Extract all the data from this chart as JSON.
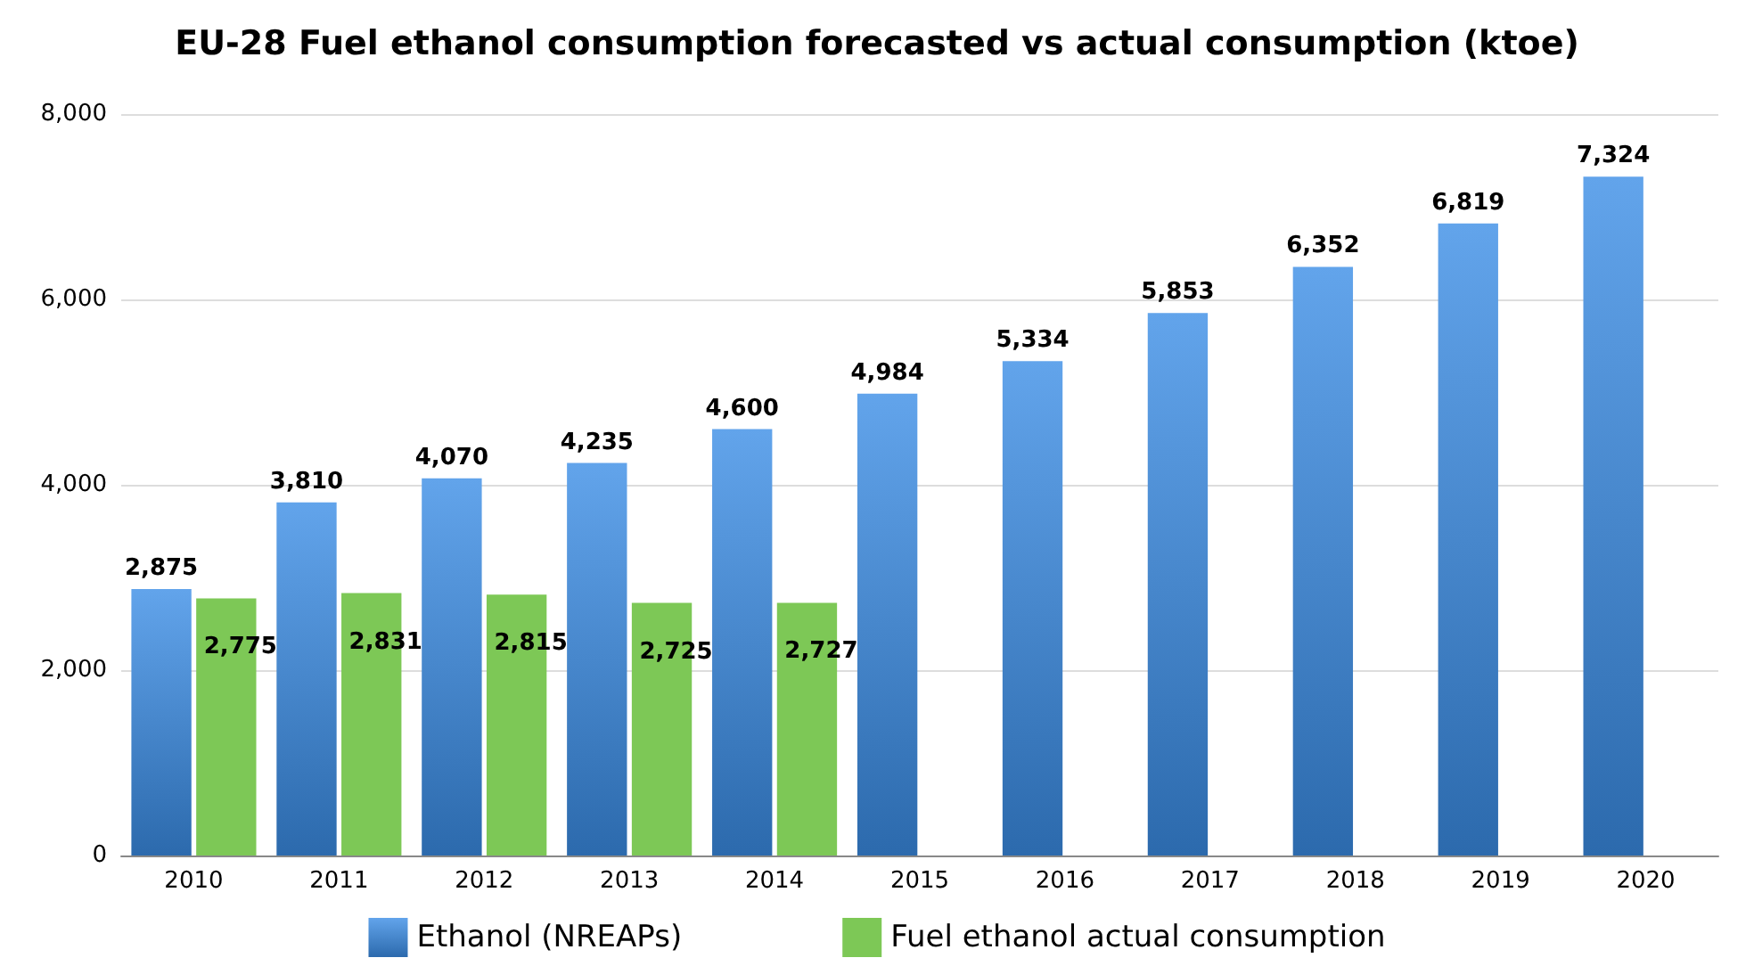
{
  "chart_data": {
    "type": "bar",
    "title": "EU-28 Fuel ethanol consumption forecasted vs actual consumption (ktoe)",
    "categories": [
      "2010",
      "2011",
      "2012",
      "2013",
      "2014",
      "2015",
      "2016",
      "2017",
      "2018",
      "2019",
      "2020"
    ],
    "series": [
      {
        "name": "Ethanol (NREAPs)",
        "color": "#3b8de6",
        "values": [
          2875,
          3810,
          4070,
          4235,
          4600,
          4984,
          5334,
          5853,
          6352,
          6819,
          7324
        ],
        "value_labels": [
          "2,875",
          "3,810",
          "4,070",
          "4,235",
          "4,600",
          "4,984",
          "5,334",
          "5,853",
          "6,352",
          "6,819",
          "7,324"
        ]
      },
      {
        "name": "Fuel ethanol actual consumption",
        "color": "#7dc856",
        "values": [
          2775,
          2831,
          2815,
          2725,
          2727,
          null,
          null,
          null,
          null,
          null,
          null
        ],
        "value_labels": [
          "2,775",
          "2,831",
          "2,815",
          "2,725",
          "2,727",
          null,
          null,
          null,
          null,
          null,
          null
        ]
      }
    ],
    "ylim": [
      0,
      8000
    ],
    "yticks": [
      0,
      {
        "value": 2000,
        "label": "2,000"
      },
      {
        "value": 4000,
        "label": "4,000"
      },
      {
        "value": 6000,
        "label": "6,000"
      },
      {
        "value": 8000,
        "label": "8,000"
      }
    ],
    "grid": "y",
    "legend": "bottom"
  }
}
